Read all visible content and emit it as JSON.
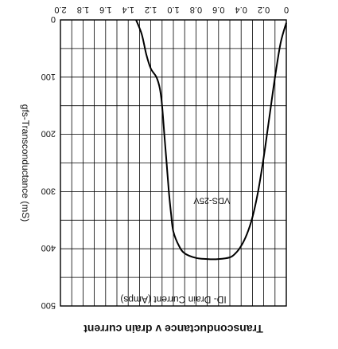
{
  "chart_data": {
    "type": "line",
    "title": "Transconductance v drain current",
    "xlabel": "ID- Drain Current (Amps)",
    "ylabel": "gfs-Transconductance (mS)",
    "xlim": [
      0,
      2.0
    ],
    "ylim": [
      0,
      500
    ],
    "xticks": [
      "0",
      "0.2",
      "0.4",
      "0.6",
      "0.8",
      "1.0",
      "1.2",
      "1.4",
      "1.6",
      "1.8",
      "2.0"
    ],
    "yticks": [
      "0",
      "100",
      "200",
      "300",
      "400",
      "500"
    ],
    "grid": true,
    "orientation_note": "figure rendered upside down",
    "annotation": "VDS-25V",
    "series": [
      {
        "name": "",
        "x": [
          0.0,
          0.05,
          0.1,
          0.15,
          0.2,
          0.25,
          0.3,
          0.35,
          0.4,
          0.45,
          0.5,
          0.6,
          0.7,
          0.8,
          0.9,
          0.95,
          1.0,
          1.02,
          1.04,
          1.06,
          1.08,
          1.1,
          1.12,
          1.15,
          1.2,
          1.24,
          1.28,
          1.33
        ],
        "y": [
          5,
          40,
          100,
          170,
          240,
          300,
          345,
          375,
          395,
          408,
          415,
          418,
          418,
          416,
          408,
          395,
          370,
          340,
          300,
          250,
          200,
          150,
          120,
          100,
          85,
          60,
          25,
          0
        ]
      }
    ]
  },
  "colors": {
    "line": "#000000",
    "grid": "#000000",
    "background": "#ffffff"
  }
}
